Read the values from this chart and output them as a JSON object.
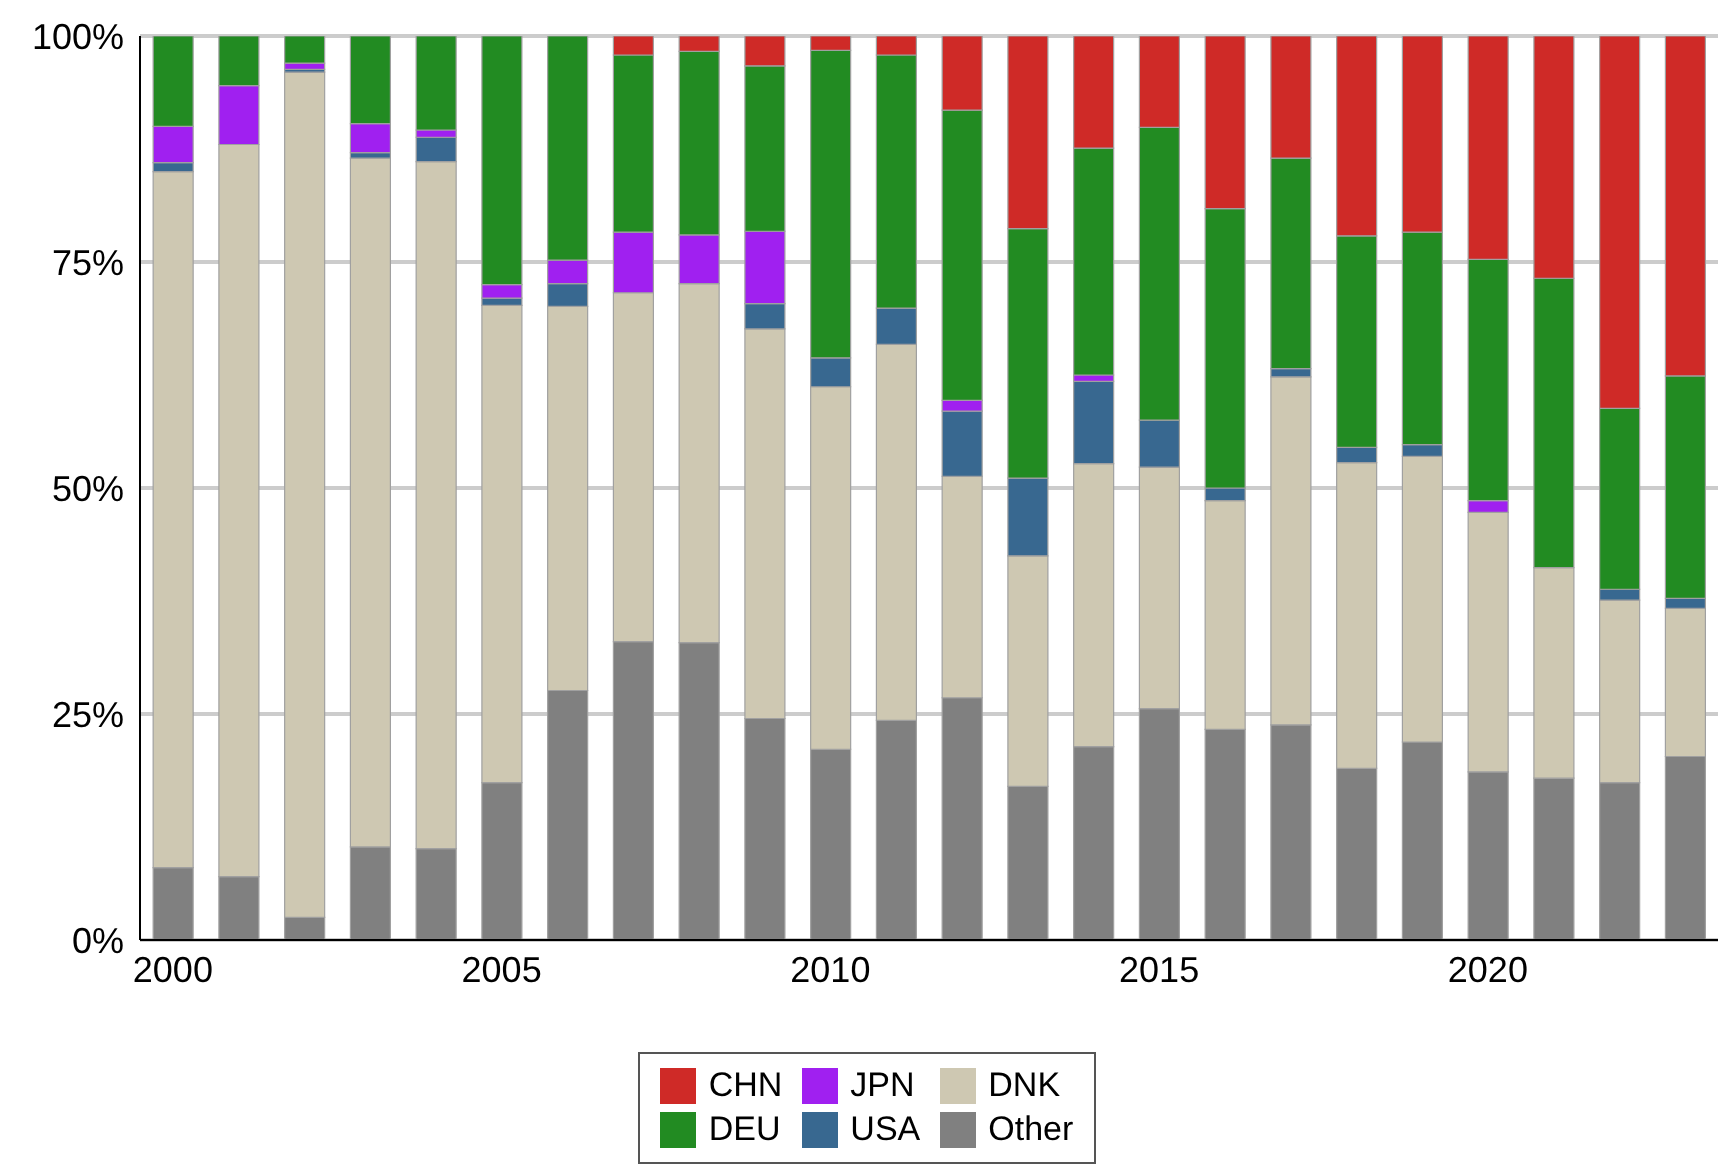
{
  "chart_data": {
    "type": "bar",
    "stacked": true,
    "categories": [
      "2000",
      null,
      null,
      null,
      null,
      "2005",
      null,
      null,
      null,
      null,
      "2010",
      null,
      null,
      null,
      null,
      "2015",
      null,
      null,
      null,
      null,
      "2020",
      null,
      null,
      null
    ],
    "series": [
      {
        "name": "Other",
        "color": "#808080",
        "values": [
          8,
          7,
          2.5,
          10.3,
          10.1,
          17.4,
          27.6,
          33,
          32.9,
          24.5,
          21.1,
          24.3,
          26.8,
          17,
          21.4,
          25.6,
          23.3,
          23.8,
          19,
          21.9,
          18.6,
          17.9,
          17.4,
          20.3
        ]
      },
      {
        "name": "DNK",
        "color": "#cec8b2",
        "values": [
          77,
          81,
          93.5,
          76.2,
          76,
          52.8,
          42.5,
          38.6,
          39.7,
          43.1,
          40.1,
          41.6,
          24.5,
          25.5,
          31.3,
          26.7,
          25.3,
          38.5,
          33.8,
          31.6,
          28.7,
          23.3,
          20.2,
          16.4
        ]
      },
      {
        "name": "USA",
        "color": "#386890",
        "values": [
          1,
          0,
          0.3,
          0.6,
          2.7,
          0.8,
          2.5,
          0,
          0,
          2.8,
          3.2,
          4,
          7.2,
          8.6,
          9.1,
          5.2,
          1.4,
          0.9,
          1.7,
          1.3,
          0,
          0,
          1.2,
          1.1
        ]
      },
      {
        "name": "JPN",
        "color": "#a020f0",
        "values": [
          4,
          6.5,
          0.7,
          3.2,
          0.8,
          1.5,
          2.6,
          6.7,
          5.4,
          8,
          0,
          0,
          1.2,
          0,
          0.7,
          0,
          0,
          0,
          0,
          0,
          1.3,
          0,
          0,
          0
        ]
      },
      {
        "name": "DEU",
        "color": "#228b22",
        "values": [
          10,
          5.5,
          3,
          9.7,
          10.4,
          27.5,
          24.8,
          19.6,
          20.3,
          18.3,
          34,
          28,
          32.1,
          27.6,
          25.1,
          32.4,
          30.9,
          23.3,
          23.4,
          23.5,
          26.7,
          32,
          20,
          24.6
        ]
      },
      {
        "name": "CHN",
        "color": "#cf2a27",
        "values": [
          0,
          0,
          0,
          0,
          0,
          0,
          0,
          2.1,
          1.7,
          3.3,
          1.6,
          2.1,
          8.2,
          21.3,
          12.4,
          10.1,
          19.1,
          13.5,
          22.1,
          21.7,
          24.7,
          26.8,
          41.2,
          37.6
        ]
      }
    ],
    "ylim": [
      0,
      100
    ],
    "yticks": [
      {
        "value": 0,
        "label": "0%"
      },
      {
        "value": 25,
        "label": "25%"
      },
      {
        "value": 50,
        "label": "50%"
      },
      {
        "value": 75,
        "label": "75%"
      },
      {
        "value": 100,
        "label": "100%"
      }
    ],
    "grid": "y",
    "legend": "bottom"
  }
}
